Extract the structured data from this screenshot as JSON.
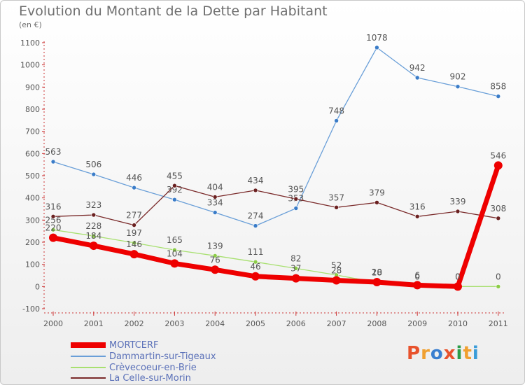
{
  "header": {
    "title": "Evolution du Montant de la Dette par Habitant",
    "unit": "(en €)"
  },
  "brand": {
    "letters": [
      "P",
      "r",
      "o",
      "x",
      "i",
      "t",
      "i"
    ],
    "colors": [
      "#e8522c",
      "#f0a030",
      "#3a7fd0",
      "#e8522c",
      "#2a9c48",
      "#f0a030",
      "#3a9cd8"
    ]
  },
  "chart_data": {
    "type": "line",
    "title": "Evolution du Montant de la Dette par Habitant",
    "ylabel": "(en €)",
    "xlabel": "",
    "x": [
      "2000",
      "2001",
      "2002",
      "2003",
      "2004",
      "2005",
      "2006",
      "2007",
      "2008",
      "2009",
      "2010",
      "2011"
    ],
    "ylim": [
      -100,
      1100
    ],
    "yticks": [
      -100,
      0,
      100,
      200,
      300,
      400,
      500,
      600,
      700,
      800,
      900,
      1000,
      1100
    ],
    "grid": false,
    "legend_position": "bottom-left",
    "series": [
      {
        "name": "Dammartin-sur-Tigeaux",
        "color": "#6a9fd8",
        "marker": "#3a7cc8",
        "values": [
          563,
          506,
          446,
          392,
          334,
          274,
          353,
          748,
          1078,
          942,
          902,
          858
        ],
        "labels": [
          "563",
          "506",
          "446",
          "392",
          "334",
          "274",
          "353",
          "748",
          "1078",
          "942",
          "902",
          "858"
        ]
      },
      {
        "name": "Crèvecoeur-en-Brie",
        "color": "#a8e070",
        "marker": "#8ccc48",
        "values": [
          256,
          228,
          197,
          165,
          139,
          111,
          82,
          52,
          18,
          0,
          0,
          0
        ],
        "labels": [
          "256",
          "228",
          "197",
          "165",
          "139",
          "111",
          "82",
          "52",
          "18",
          "0",
          "0",
          "0"
        ]
      },
      {
        "name": "La Celle-sur-Morin",
        "color": "#7a2a2a",
        "marker": "#6a2020",
        "values": [
          316,
          323,
          277,
          455,
          404,
          434,
          395,
          357,
          379,
          316,
          339,
          308
        ],
        "labels": [
          "316",
          "323",
          "277",
          "455",
          "404",
          "434",
          "395",
          "357",
          "379",
          "316",
          "339",
          "308"
        ]
      },
      {
        "name": "MORTCERF",
        "color": "#ee0000",
        "marker": "#ee0000",
        "values": [
          220,
          184,
          146,
          104,
          76,
          46,
          37,
          28,
          20,
          6,
          0,
          546
        ],
        "labels": [
          "220",
          "184",
          "146",
          "104",
          "76",
          "46",
          "37",
          "28",
          "20",
          "6",
          "0",
          "546"
        ]
      }
    ],
    "legend_order": [
      "MORTCERF",
      "Dammartin-sur-Tigeaux",
      "Crèvecoeur-en-Brie",
      "La Celle-sur-Morin"
    ]
  }
}
